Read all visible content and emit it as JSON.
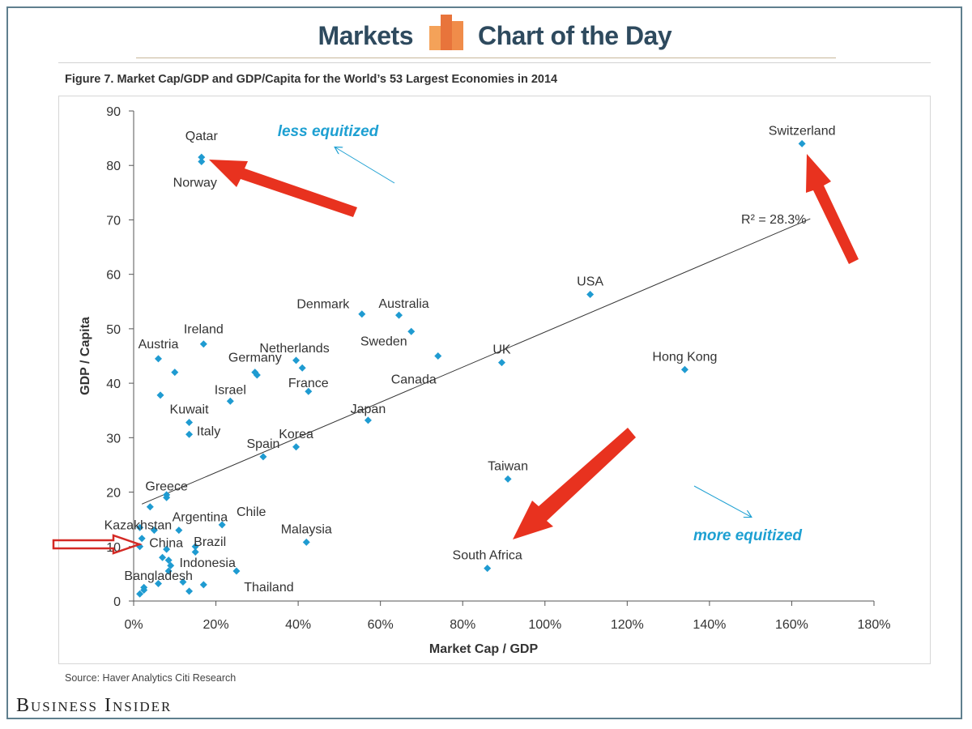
{
  "header": {
    "left_word": "Markets",
    "right_words": "Chart of the Day"
  },
  "figure_title": "Figure 7. Market Cap/GDP and GDP/Capita for the World’s 53 Largest Economies in 2014",
  "source": "Source: Haver Analytics Citi Research",
  "brand": "Business Insider",
  "colors": {
    "point": "#1f9bd1",
    "arrow": "#e8321f",
    "annotation": "#1ea0d2",
    "header": "#2e4a5e"
  },
  "chart_data": {
    "type": "scatter",
    "xlabel": "Market Cap / GDP",
    "ylabel": "GDP / Capita",
    "xlim": [
      0,
      180
    ],
    "ylim": [
      0,
      90
    ],
    "xticks": [
      "0%",
      "20%",
      "40%",
      "60%",
      "80%",
      "100%",
      "120%",
      "140%",
      "160%",
      "180%"
    ],
    "yticks": [
      "0",
      "10",
      "20",
      "30",
      "40",
      "50",
      "60",
      "70",
      "80",
      "90"
    ],
    "trendline": {
      "from": [
        2,
        17.8
      ],
      "to": [
        164.5,
        70.2
      ],
      "label": "R² = 28.3%"
    },
    "annotations": [
      "less equitized",
      "more equitized"
    ],
    "labeled_points": [
      {
        "name": "Qatar",
        "x": 16.5,
        "y": 81.5
      },
      {
        "name": "Norway",
        "x": 16.5,
        "y": 80.7
      },
      {
        "name": "Switzerland",
        "x": 162.5,
        "y": 84.0
      },
      {
        "name": "USA",
        "x": 111,
        "y": 56.3
      },
      {
        "name": "Denmark",
        "x": 55.5,
        "y": 52.7
      },
      {
        "name": "Australia",
        "x": 64.5,
        "y": 52.5
      },
      {
        "name": "Sweden",
        "x": 67.5,
        "y": 49.5
      },
      {
        "name": "Ireland",
        "x": 17,
        "y": 47.2
      },
      {
        "name": "Austria",
        "x": 6,
        "y": 44.5
      },
      {
        "name": "Netherlands",
        "x": 39.5,
        "y": 44.2
      },
      {
        "name": "UK",
        "x": 89.5,
        "y": 43.8
      },
      {
        "name": "Hong Kong",
        "x": 134,
        "y": 42.5
      },
      {
        "name": "Germany",
        "x": 29.5,
        "y": 42.0
      },
      {
        "name": "Canada",
        "x": 74,
        "y": 45.0
      },
      {
        "name": "France",
        "x": 42.5,
        "y": 38.5
      },
      {
        "name": "Israel",
        "x": 23.5,
        "y": 36.7
      },
      {
        "name": "Kuwait",
        "x": 13.5,
        "y": 32.8
      },
      {
        "name": "Japan",
        "x": 57,
        "y": 33.2
      },
      {
        "name": "Italy",
        "x": 13.5,
        "y": 30.6
      },
      {
        "name": "Spain",
        "x": 31.5,
        "y": 26.5
      },
      {
        "name": "Korea",
        "x": 39.5,
        "y": 28.3
      },
      {
        "name": "Taiwan",
        "x": 91,
        "y": 22.4
      },
      {
        "name": "Greece",
        "x": 8,
        "y": 19.0
      },
      {
        "name": "Argentina",
        "x": 11,
        "y": 13.0
      },
      {
        "name": "Chile",
        "x": 21.5,
        "y": 14.0
      },
      {
        "name": "Kazakhstan",
        "x": 5,
        "y": 13.0
      },
      {
        "name": "China",
        "x": 2,
        "y": 11.5
      },
      {
        "name": "Brazil",
        "x": 15,
        "y": 10.0
      },
      {
        "name": "Malaysia",
        "x": 42,
        "y": 10.8
      },
      {
        "name": "Indonesia",
        "x": 8.5,
        "y": 5.5
      },
      {
        "name": "Thailand",
        "x": 25,
        "y": 5.5
      },
      {
        "name": "South Africa",
        "x": 86,
        "y": 6.0
      },
      {
        "name": "Bangladesh",
        "x": 2.5,
        "y": 2.5
      }
    ],
    "unlabeled_points": [
      [
        8,
        19.5
      ],
      [
        4,
        17.3
      ],
      [
        1.5,
        13.5
      ],
      [
        1.5,
        10.0
      ],
      [
        6.5,
        37.8
      ],
      [
        10,
        42.0
      ],
      [
        30,
        41.5
      ],
      [
        41,
        42.8
      ],
      [
        15,
        9.0
      ],
      [
        8,
        9.5
      ],
      [
        7,
        8.0
      ],
      [
        8.5,
        7.5
      ],
      [
        9,
        6.5
      ],
      [
        6,
        3.2
      ],
      [
        12,
        3.5
      ],
      [
        13.5,
        1.8
      ],
      [
        17,
        3.0
      ],
      [
        1.5,
        1.3
      ],
      [
        2.5,
        2.0
      ]
    ]
  }
}
